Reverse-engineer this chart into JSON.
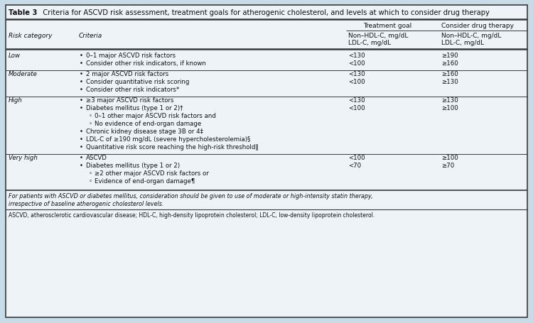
{
  "title_bold": "Table 3",
  "title_rest": "   Criteria for ASCVD risk assessment, treatment goals for atherogenic cholesterol, and levels at which to consider drug therapy",
  "col_headers": {
    "col1": "Risk category",
    "col2": "Criteria",
    "col3_top": "Treatment goal",
    "col4_top": "Consider drug therapy",
    "col3_bot1": "Non–HDL-C, mg/dL",
    "col3_bot2": "LDL-C, mg/dL",
    "col4_bot1": "Non–HDL-C, mg/dL",
    "col4_bot2": "LDL-C, mg/dL"
  },
  "rows": [
    {
      "category": "Low",
      "criteria_lines": [
        [
          "•",
          "0–1 major ASCVD risk factors",
          false
        ],
        [
          "•",
          "Consider other risk indicators, if known",
          false
        ]
      ],
      "treatment": [
        "<130",
        "<100"
      ],
      "drug": [
        "≥190",
        "≥160"
      ]
    },
    {
      "category": "Moderate",
      "criteria_lines": [
        [
          "•",
          "2 major ASCVD risk factors",
          false
        ],
        [
          "•",
          "Consider quantitative risk scoring",
          false
        ],
        [
          "•",
          "Consider other risk indicators*",
          false
        ]
      ],
      "treatment": [
        "<130",
        "<100"
      ],
      "drug": [
        "≥160",
        "≥130"
      ]
    },
    {
      "category": "High",
      "criteria_lines": [
        [
          "•",
          "≥3 major ASCVD risk factors",
          false
        ],
        [
          "•",
          "Diabetes mellitus (type 1 or 2)†",
          false
        ],
        [
          "◦",
          "0–1 other major ASCVD risk factors and",
          true
        ],
        [
          "◦",
          "No evidence of end-organ damage",
          true
        ],
        [
          "•",
          "Chronic kidney disease stage 3B or 4‡",
          false
        ],
        [
          "•",
          "LDL-C of ≥190 mg/dL (severe hypercholesterolemia)§",
          false
        ],
        [
          "•",
          "Quantitative risk score reaching the high-risk threshold‖",
          false
        ]
      ],
      "treatment": [
        "<130",
        "<100"
      ],
      "drug": [
        "≥130",
        "≥100"
      ]
    },
    {
      "category": "Very high",
      "criteria_lines": [
        [
          "•",
          "ASCVD",
          false
        ],
        [
          "•",
          "Diabetes mellitus (type 1 or 2)",
          false
        ],
        [
          "◦",
          "≥2 other major ASCVD risk factors or",
          true
        ],
        [
          "◦",
          "Evidence of end-organ damage¶",
          true
        ]
      ],
      "treatment": [
        "<100",
        "<70"
      ],
      "drug": [
        "≥100",
        "≥70"
      ]
    }
  ],
  "footnote_italic1": "For patients with ASCVD or diabetes mellitus, consideration should be given to use of moderate or high-intensity statin therapy,",
  "footnote_italic2": "irrespective of baseline atherogenic cholesterol levels.",
  "footnote_abbrev": "ASCVD, atherosclerotic cardiovascular disease; HDL-C, high-density lipoprotein cholesterol; LDL-C, low-density lipoprotein cholesterol.",
  "bg_color": "#c8dce8",
  "table_bg": "#edf3f7",
  "border_dark": "#3a3a3a",
  "border_light": "#888888",
  "text_color": "#111111"
}
